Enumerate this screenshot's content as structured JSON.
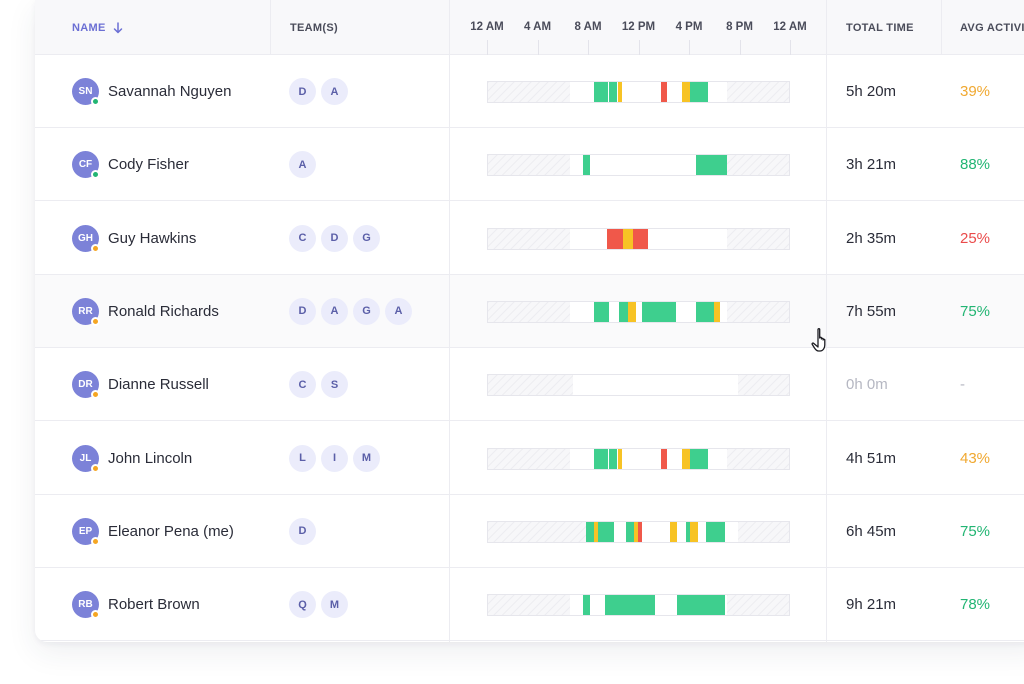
{
  "colors": {
    "accent": "#6b6fd4",
    "avatar": "#7c82d8",
    "green": "#3ecf8e",
    "yellow": "#f7c325",
    "red": "#f0584a",
    "orange_text": "#f0a830",
    "green_text": "#22b573",
    "red_text": "#ea4b4b",
    "online_dot": "#22b573",
    "away_dot": "#f5a623"
  },
  "header": {
    "name": "NAME",
    "teams": "TEAM(S)",
    "total_time": "TOTAL TIME",
    "avg_activity": "AVG ACTIVITY",
    "sort_icon": "arrow-down-icon",
    "ticks": [
      "12 AM",
      "4 AM",
      "8 AM",
      "12 PM",
      "4 PM",
      "8 PM",
      "12 AM"
    ]
  },
  "rows": [
    {
      "initials": "SN",
      "name": "Savannah Nguyen",
      "status": "online",
      "teams": [
        "D",
        "A"
      ],
      "timeline": {
        "hatch": [
          [
            0,
            6.5
          ],
          [
            18.9,
            24
          ]
        ],
        "segments": [
          [
            8.4,
            9.5,
            "green"
          ],
          [
            9.6,
            10.2,
            "green"
          ],
          [
            10.3,
            10.6,
            "yellow"
          ],
          [
            13.7,
            14.2,
            "red"
          ],
          [
            15.4,
            16.0,
            "yellow"
          ],
          [
            16.0,
            17.4,
            "green"
          ]
        ]
      },
      "total_time": "5h 20m",
      "avg_activity": "39%",
      "activity_level": "orange"
    },
    {
      "initials": "CF",
      "name": "Cody Fisher",
      "status": "online",
      "teams": [
        "A"
      ],
      "timeline": {
        "hatch": [
          [
            0,
            6.5
          ],
          [
            18.9,
            24
          ]
        ],
        "segments": [
          [
            7.5,
            8.1,
            "green"
          ],
          [
            16.5,
            18.9,
            "green"
          ]
        ]
      },
      "total_time": "3h 21m",
      "avg_activity": "88%",
      "activity_level": "green"
    },
    {
      "initials": "GH",
      "name": "Guy Hawkins",
      "status": "away",
      "teams": [
        "C",
        "D",
        "G"
      ],
      "timeline": {
        "hatch": [
          [
            0,
            6.5
          ],
          [
            18.9,
            24
          ]
        ],
        "segments": [
          [
            9.4,
            10.7,
            "red"
          ],
          [
            10.7,
            11.5,
            "yellow"
          ],
          [
            11.5,
            12.7,
            "red"
          ]
        ]
      },
      "total_time": "2h 35m",
      "avg_activity": "25%",
      "activity_level": "red"
    },
    {
      "initials": "RR",
      "name": "Ronald Richards",
      "status": "away",
      "teams": [
        "D",
        "A",
        "G",
        "A"
      ],
      "timeline": {
        "hatch": [
          [
            0,
            6.5
          ],
          [
            18.9,
            24
          ]
        ],
        "segments": [
          [
            8.4,
            9.6,
            "green"
          ],
          [
            10.4,
            11.1,
            "green"
          ],
          [
            11.1,
            11.7,
            "yellow"
          ],
          [
            12.2,
            14.9,
            "green"
          ],
          [
            16.5,
            17.9,
            "green"
          ],
          [
            17.9,
            18.4,
            "yellow"
          ]
        ]
      },
      "total_time": "7h 55m",
      "avg_activity": "75%",
      "activity_level": "green"
    },
    {
      "initials": "DR",
      "name": "Dianne Russell",
      "status": "away",
      "teams": [
        "C",
        "S"
      ],
      "timeline": {
        "hatch": [
          [
            0,
            6.7
          ],
          [
            19.8,
            24
          ]
        ],
        "segments": []
      },
      "total_time": "0h 0m",
      "avg_activity": "-",
      "activity_level": "none"
    },
    {
      "initials": "JL",
      "name": "John Lincoln",
      "status": "away",
      "teams": [
        "L",
        "I",
        "M"
      ],
      "timeline": {
        "hatch": [
          [
            0,
            6.5
          ],
          [
            18.9,
            24
          ]
        ],
        "segments": [
          [
            8.4,
            9.5,
            "green"
          ],
          [
            9.6,
            10.2,
            "green"
          ],
          [
            10.3,
            10.6,
            "yellow"
          ],
          [
            13.7,
            14.2,
            "red"
          ],
          [
            15.4,
            16.0,
            "yellow"
          ],
          [
            16.0,
            17.4,
            "green"
          ]
        ]
      },
      "total_time": "4h 51m",
      "avg_activity": "43%",
      "activity_level": "orange"
    },
    {
      "initials": "EP",
      "name": "Eleanor Pena (me)",
      "status": "away",
      "teams": [
        "D"
      ],
      "timeline": {
        "hatch": [
          [
            0,
            7.8
          ],
          [
            19.8,
            24
          ]
        ],
        "segments": [
          [
            7.8,
            8.4,
            "green"
          ],
          [
            8.4,
            8.7,
            "yellow"
          ],
          [
            8.7,
            10.0,
            "green"
          ],
          [
            10.9,
            11.6,
            "green"
          ],
          [
            11.6,
            11.9,
            "yellow"
          ],
          [
            11.9,
            12.2,
            "red"
          ],
          [
            14.4,
            15.0,
            "yellow"
          ],
          [
            15.7,
            16.0,
            "green"
          ],
          [
            16.0,
            16.6,
            "yellow"
          ],
          [
            17.3,
            18.8,
            "green"
          ]
        ]
      },
      "total_time": "6h 45m",
      "avg_activity": "75%",
      "activity_level": "green"
    },
    {
      "initials": "RB",
      "name": "Robert Brown",
      "status": "away",
      "teams": [
        "Q",
        "M"
      ],
      "timeline": {
        "hatch": [
          [
            0,
            6.5
          ],
          [
            18.9,
            24
          ]
        ],
        "segments": [
          [
            7.5,
            8.1,
            "green"
          ],
          [
            9.3,
            13.2,
            "green"
          ],
          [
            15.0,
            18.8,
            "green"
          ]
        ]
      },
      "total_time": "9h 21m",
      "avg_activity": "78%",
      "activity_level": "green"
    }
  ],
  "cursor_icon": "hand-pointer-icon"
}
